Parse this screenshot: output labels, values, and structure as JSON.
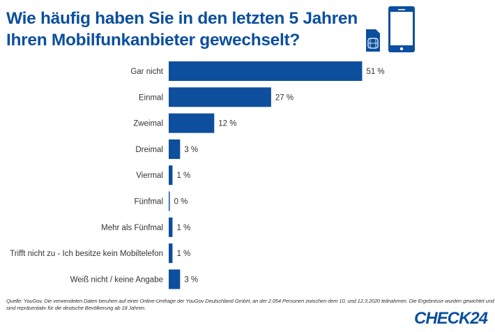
{
  "title_lines": [
    "Wie häufig haben Sie in den letzten 5 Jahren",
    "Ihren Mobilfunkanbieter gewechselt?"
  ],
  "colors": {
    "accent": "#0b4f9e",
    "bar": "#0d4f9c"
  },
  "icons": [
    "sim-card-icon",
    "smartphone-icon"
  ],
  "chart_data": {
    "type": "bar",
    "orientation": "horizontal",
    "categories": [
      "Gar nicht",
      "Einmal",
      "Zweimal",
      "Dreimal",
      "Viermal",
      "Fünfmal",
      "Mehr als Fünfmal",
      "Trifft nicht zu - Ich besitze kein Mobiltelefon",
      "Weiß nicht / keine Angabe"
    ],
    "values": [
      51,
      27,
      12,
      3,
      1,
      0,
      1,
      1,
      3
    ],
    "value_labels": [
      "51 %",
      "27 %",
      "12 %",
      "3 %",
      "1 %",
      "0 %",
      "1 %",
      "1 %",
      "3 %"
    ],
    "unit": "%",
    "grid": false
  },
  "source": "Quelle: YouGov. Die verwendeten Daten beruhen auf einer Online-Umfrage der YouGov Deutschland GmbH, an der 2.054 Personen zwischen dem 10. und 12.3.2020 teilnahmen. Die Ergebnisse wurden gewichtet und sind repräsentativ für die deutsche Bevölkerung ab 18 Jahren.",
  "logo": "CHECK24"
}
